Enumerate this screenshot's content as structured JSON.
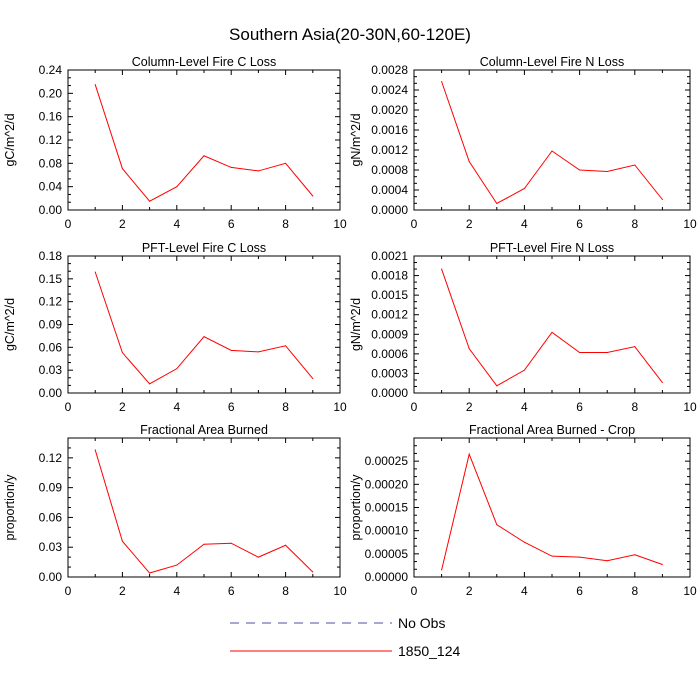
{
  "figure": {
    "title": "Southern Asia(20-30N,60-120E)"
  },
  "legend": {
    "items": [
      {
        "label": "No Obs",
        "color": "#4f4fa8",
        "style": "dashed"
      },
      {
        "label": "1850_124",
        "color": "#ff0000",
        "style": "solid"
      }
    ]
  },
  "chart_data": [
    {
      "type": "line",
      "title": "Column-Level Fire C Loss",
      "ylabel": "gC/m^2/d",
      "xlim": [
        0,
        10
      ],
      "xticks": [
        "0",
        "2",
        "4",
        "6",
        "8",
        "10"
      ],
      "ylim": [
        0,
        0.24
      ],
      "yticks": [
        "0.00",
        "0.04",
        "0.08",
        "0.12",
        "0.16",
        "0.20",
        "0.24"
      ],
      "x": [
        1,
        2,
        3,
        4,
        5,
        6,
        7,
        8,
        9
      ],
      "series": [
        {
          "name": "1850_124",
          "color": "#ff0000",
          "values": [
            0.215,
            0.071,
            0.015,
            0.04,
            0.093,
            0.073,
            0.067,
            0.08,
            0.024
          ]
        }
      ]
    },
    {
      "type": "line",
      "title": "Column-Level Fire N Loss",
      "ylabel": "gN/m^2/d",
      "xlim": [
        0,
        10
      ],
      "xticks": [
        "0",
        "2",
        "4",
        "6",
        "8",
        "10"
      ],
      "ylim": [
        0,
        0.0028
      ],
      "yticks": [
        "0.0000",
        "0.0004",
        "0.0008",
        "0.0012",
        "0.0016",
        "0.0020",
        "0.0024",
        "0.0028"
      ],
      "x": [
        1,
        2,
        3,
        4,
        5,
        6,
        7,
        8,
        9
      ],
      "series": [
        {
          "name": "1850_124",
          "color": "#ff0000",
          "values": [
            0.00257,
            0.00097,
            0.00013,
            0.00043,
            0.00118,
            0.0008,
            0.00077,
            0.0009,
            0.00021
          ]
        }
      ]
    },
    {
      "type": "line",
      "title": "PFT-Level Fire C Loss",
      "ylabel": "gC/m^2/d",
      "xlim": [
        0,
        10
      ],
      "xticks": [
        "0",
        "2",
        "4",
        "6",
        "8",
        "10"
      ],
      "ylim": [
        0,
        0.18
      ],
      "yticks": [
        "0.00",
        "0.03",
        "0.06",
        "0.09",
        "0.12",
        "0.15",
        "0.18"
      ],
      "x": [
        1,
        2,
        3,
        4,
        5,
        6,
        7,
        8,
        9
      ],
      "series": [
        {
          "name": "1850_124",
          "color": "#ff0000",
          "values": [
            0.159,
            0.053,
            0.012,
            0.032,
            0.074,
            0.056,
            0.054,
            0.062,
            0.019
          ]
        }
      ]
    },
    {
      "type": "line",
      "title": "PFT-Level Fire N Loss",
      "ylabel": "gN/m^2/d",
      "xlim": [
        0,
        10
      ],
      "xticks": [
        "0",
        "2",
        "4",
        "6",
        "8",
        "10"
      ],
      "ylim": [
        0,
        0.0021
      ],
      "yticks": [
        "0.0000",
        "0.0003",
        "0.0006",
        "0.0009",
        "0.0012",
        "0.0015",
        "0.0018",
        "0.0021"
      ],
      "x": [
        1,
        2,
        3,
        4,
        5,
        6,
        7,
        8,
        9
      ],
      "series": [
        {
          "name": "1850_124",
          "color": "#ff0000",
          "values": [
            0.0019,
            0.00068,
            0.00011,
            0.00035,
            0.00093,
            0.00062,
            0.00062,
            0.00071,
            0.00016
          ]
        }
      ]
    },
    {
      "type": "line",
      "title": "Fractional Area Burned",
      "ylabel": "proportion/y",
      "xlim": [
        0,
        10
      ],
      "xticks": [
        "0",
        "2",
        "4",
        "6",
        "8",
        "10"
      ],
      "ylim": [
        0,
        0.14
      ],
      "yticks": [
        "0.00",
        "0.03",
        "0.06",
        "0.09",
        "0.12"
      ],
      "ytick_values": [
        0,
        0.03,
        0.06,
        0.09,
        0.12
      ],
      "x": [
        1,
        2,
        3,
        4,
        5,
        6,
        7,
        8,
        9
      ],
      "series": [
        {
          "name": "1850_124",
          "color": "#ff0000",
          "values": [
            0.128,
            0.036,
            0.004,
            0.012,
            0.033,
            0.034,
            0.02,
            0.032,
            0.005
          ]
        }
      ]
    },
    {
      "type": "line",
      "title": "Fractional Area Burned - Crop",
      "ylabel": "proportion/y",
      "xlim": [
        0,
        10
      ],
      "xticks": [
        "0",
        "2",
        "4",
        "6",
        "8",
        "10"
      ],
      "ylim": [
        0,
        0.0003
      ],
      "yticks": [
        "0.00000",
        "0.00005",
        "0.00010",
        "0.00015",
        "0.00020",
        "0.00025"
      ],
      "ytick_values": [
        0,
        5e-05,
        0.0001,
        0.00015,
        0.0002,
        0.00025
      ],
      "x": [
        1,
        2,
        3,
        4,
        5,
        6,
        7,
        8,
        9
      ],
      "series": [
        {
          "name": "1850_124",
          "color": "#ff0000",
          "values": [
            1.5e-05,
            0.000265,
            0.000113,
            7.5e-05,
            4.5e-05,
            4.3e-05,
            3.5e-05,
            4.8e-05,
            2.7e-05
          ]
        }
      ]
    }
  ]
}
